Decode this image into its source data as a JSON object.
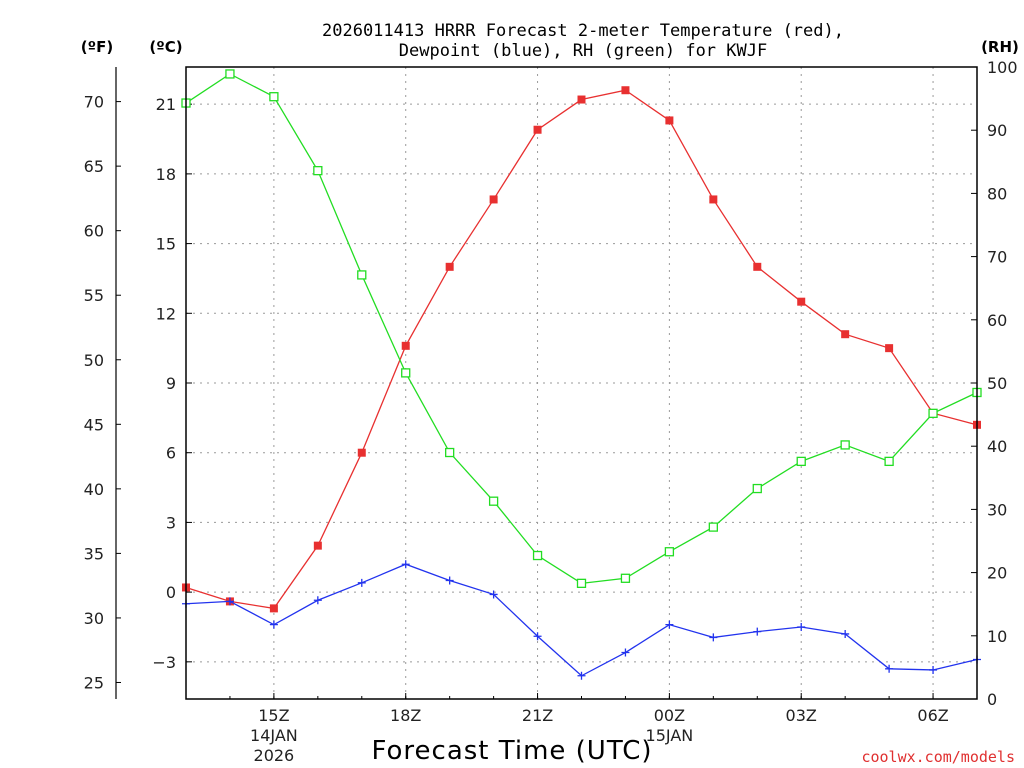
{
  "title": {
    "line1": "2026011413 HRRR Forecast 2-meter Temperature (red),",
    "line2": "Dewpoint (blue), RH (green) for KWJF"
  },
  "units": {
    "fahrenheit": "(ºF)",
    "celsius": "(ºC)",
    "rh": "(RH)"
  },
  "credit": "coolwx.com/models",
  "colors": {
    "temperature": "#e83030",
    "dewpoint": "#2233ee",
    "rh": "#22dd22",
    "frame": "#000000"
  },
  "chart_data": {
    "type": "line",
    "title": "2026011413 HRRR Forecast 2-meter Temperature (red), Dewpoint (blue), RH (green) for KWJF",
    "xlabel": "Forecast Time (UTC)",
    "x_hours": [
      13,
      14,
      15,
      16,
      17,
      18,
      19,
      20,
      21,
      22,
      23,
      24,
      25,
      26,
      27,
      28,
      29,
      30,
      31
    ],
    "xlim": [
      13,
      31
    ],
    "x_ticks": [
      {
        "hour": 15,
        "label": "15Z",
        "sub1": "14JAN",
        "sub2": "2026"
      },
      {
        "hour": 18,
        "label": "18Z",
        "sub1": "",
        "sub2": ""
      },
      {
        "hour": 21,
        "label": "21Z",
        "sub1": "",
        "sub2": ""
      },
      {
        "hour": 24,
        "label": "00Z",
        "sub1": "15JAN",
        "sub2": ""
      },
      {
        "hour": 27,
        "label": "03Z",
        "sub1": "",
        "sub2": ""
      },
      {
        "hour": 30,
        "label": "06Z",
        "sub1": "",
        "sub2": ""
      }
    ],
    "ylim_celsius": [
      -4.6,
      22.6
    ],
    "celsius_ticks": [
      "21",
      "18",
      "15",
      "12",
      "9",
      "6",
      "3",
      "0",
      "−3"
    ],
    "celsius_tick_values": [
      21,
      18,
      15,
      12,
      9,
      6,
      3,
      0,
      -3
    ],
    "fahrenheit_ticks": [
      "70",
      "65",
      "60",
      "55",
      "50",
      "45",
      "40",
      "35",
      "30",
      "25"
    ],
    "fahrenheit_tick_values": [
      70,
      65,
      60,
      55,
      50,
      45,
      40,
      35,
      30,
      25
    ],
    "ylim_rh": [
      0,
      100
    ],
    "rh_ticks": [
      "100",
      "90",
      "80",
      "70",
      "60",
      "50",
      "40",
      "30",
      "20",
      "10",
      "0"
    ],
    "rh_tick_values": [
      100,
      90,
      80,
      70,
      60,
      50,
      40,
      30,
      20,
      10,
      0
    ],
    "series": [
      {
        "name": "2-meter Temperature",
        "unit": "C",
        "color": "red",
        "marker": "filled-square",
        "values": [
          0.2,
          -0.4,
          -0.7,
          2.0,
          6.0,
          10.6,
          14.0,
          16.9,
          19.9,
          21.2,
          21.6,
          20.3,
          16.9,
          14.0,
          12.5,
          11.1,
          10.5,
          7.7,
          7.2
        ]
      },
      {
        "name": "Dewpoint",
        "unit": "C",
        "color": "blue",
        "marker": "plus",
        "values": [
          -0.5,
          -0.4,
          -1.4,
          -0.35,
          0.4,
          1.2,
          0.5,
          -0.1,
          -1.9,
          -3.6,
          -2.6,
          -1.4,
          -1.95,
          -1.7,
          -1.5,
          -1.8,
          -3.3,
          -3.35,
          -2.9
        ]
      },
      {
        "name": "Relative Humidity",
        "unit": "%",
        "color": "green",
        "marker": "open-square",
        "values": [
          94.3,
          98.9,
          95.3,
          83.6,
          67.1,
          51.6,
          39.0,
          31.3,
          22.7,
          18.3,
          19.1,
          23.3,
          27.2,
          33.3,
          37.6,
          40.2,
          37.6,
          45.2,
          48.5
        ]
      }
    ]
  }
}
